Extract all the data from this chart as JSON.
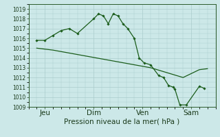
{
  "xlabel": "Pression niveau de la mer( hPa )",
  "bg_color": "#cce8e8",
  "grid_color": "#aacccc",
  "line_color": "#1a5c1a",
  "marker_color": "#1a5c1a",
  "ylim": [
    1009,
    1019.5
  ],
  "yticks": [
    1009,
    1010,
    1011,
    1012,
    1013,
    1014,
    1015,
    1016,
    1017,
    1018,
    1019
  ],
  "xtick_labels": [
    "Jeu",
    "Dim",
    "Ven",
    "Sam"
  ],
  "xtick_positions": [
    1,
    4,
    7,
    10
  ],
  "xlim": [
    0,
    11.5
  ],
  "series1_x": [
    0.5,
    1.0,
    1.5,
    2.0,
    2.5,
    3.0,
    4.0,
    4.3,
    4.6,
    4.9,
    5.2,
    5.5,
    5.8,
    6.1,
    6.5,
    6.8,
    7.1,
    7.5,
    8.0,
    8.3,
    8.6,
    8.9,
    9.0,
    9.3,
    9.7,
    10.5,
    10.8
  ],
  "series1_y": [
    1015.8,
    1015.8,
    1016.3,
    1016.8,
    1017.0,
    1016.5,
    1018.0,
    1018.5,
    1018.3,
    1017.5,
    1018.5,
    1018.3,
    1017.5,
    1017.0,
    1016.0,
    1014.0,
    1013.5,
    1013.3,
    1012.2,
    1012.0,
    1011.2,
    1011.0,
    1010.8,
    1009.2,
    1009.2,
    1011.1,
    1010.9
  ],
  "series2_x": [
    0.5,
    1.5,
    2.5,
    3.5,
    4.5,
    5.5,
    6.5,
    7.5,
    8.5,
    9.5,
    10.5,
    11.0
  ],
  "series2_y": [
    1015.0,
    1014.8,
    1014.5,
    1014.2,
    1013.9,
    1013.6,
    1013.3,
    1013.0,
    1012.5,
    1012.0,
    1012.8,
    1012.9
  ],
  "ylabel_fontsize": 5.5,
  "xlabel_fontsize": 7.5
}
